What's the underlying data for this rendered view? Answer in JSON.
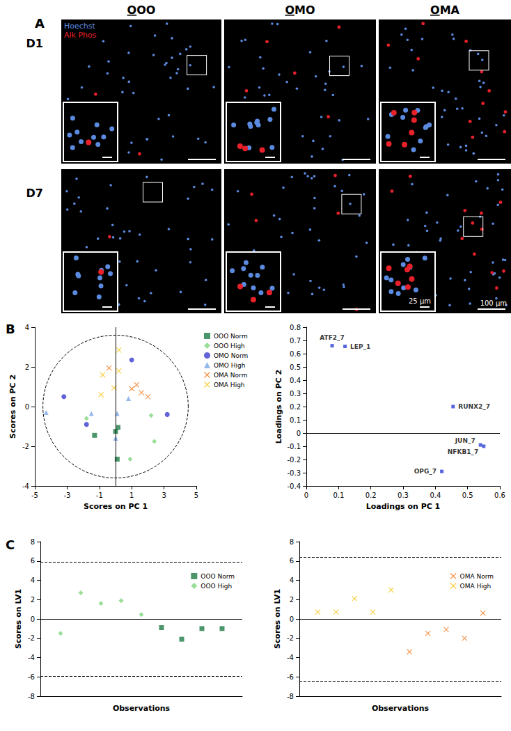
{
  "figure_a": {
    "label": "A",
    "columns": [
      "OOO",
      "OMO",
      "OMA"
    ],
    "rows": [
      "D1",
      "D7"
    ],
    "stains": [
      {
        "name": "Hoechst",
        "color": "#5b8be0"
      },
      {
        "name": "Alk Phos",
        "color": "#e8202a"
      }
    ],
    "scale_bars": {
      "inset": "25 µm",
      "image": "100 µm"
    }
  },
  "panel_labels": [
    "B",
    "C"
  ],
  "chart_data": [
    {
      "type": "scatter",
      "xlabel": "Scores on PC 1",
      "ylabel": "Scores on PC 2",
      "xlim": [
        -5,
        5
      ],
      "xticks": [
        -5,
        -3,
        -1,
        1,
        3,
        5
      ],
      "ylim": [
        -4,
        4
      ],
      "yticks": [
        -4,
        -2,
        0,
        2,
        4
      ],
      "legend": "right",
      "confidence_ellipse": {
        "x_radius": 4.5,
        "y_radius": 3.6
      },
      "reference_lines": {
        "x": 0
      },
      "series": [
        {
          "name": "OOO Norm",
          "color": "#1e7d46",
          "marker": "square",
          "x": [
            -1.3,
            0.0,
            0.15,
            0.1
          ],
          "values": [
            -1.45,
            -1.25,
            -1.05,
            -2.65
          ]
        },
        {
          "name": "OOO High",
          "color": "#7ed67e",
          "marker": "diamond",
          "x": [
            -1.8,
            2.2,
            2.4,
            0.9
          ],
          "values": [
            -0.6,
            -0.45,
            -1.75,
            -2.65
          ]
        },
        {
          "name": "OMO Norm",
          "color": "#3b3bd0",
          "marker": "circle",
          "x": [
            -3.2,
            -1.8,
            1.0,
            3.2
          ],
          "values": [
            0.5,
            -0.9,
            2.35,
            -0.4
          ]
        },
        {
          "name": "OMO High",
          "color": "#7aa6e6",
          "marker": "triangle",
          "x": [
            -4.3,
            -1.5,
            0.1,
            0.0,
            0.8
          ],
          "values": [
            -0.3,
            -0.35,
            -0.35,
            -1.6,
            0.4
          ]
        },
        {
          "name": "OMA Norm",
          "color": "#f07c22",
          "marker": "x",
          "x": [
            -0.4,
            1.0,
            1.3,
            1.6,
            2.0
          ],
          "values": [
            1.95,
            0.9,
            1.1,
            0.7,
            0.5
          ]
        },
        {
          "name": "OMA High",
          "color": "#f5c518",
          "marker": "x",
          "x": [
            0.2,
            0.2,
            -0.8,
            -0.1,
            -0.9
          ],
          "values": [
            2.85,
            1.8,
            1.6,
            0.95,
            0.6
          ]
        }
      ]
    },
    {
      "type": "scatter",
      "xlabel": "Loadings on PC 1",
      "ylabel": "Loadings on PC 2",
      "xlim": [
        0,
        0.6
      ],
      "xticks": [
        0,
        0.1,
        0.2,
        0.3,
        0.4,
        0.5,
        0.6
      ],
      "ylim": [
        -0.4,
        0.8
      ],
      "yticks": [
        -0.4,
        -0.3,
        -0.2,
        -0.1,
        0,
        0.1,
        0.2,
        0.3,
        0.4,
        0.5,
        0.6,
        0.7,
        0.8
      ],
      "reference_lines": {
        "y": 0
      },
      "color": "#2b3fd6",
      "marker": "square",
      "x": [
        0.08,
        0.12,
        0.455,
        0.54,
        0.55,
        0.42
      ],
      "values": [
        0.66,
        0.655,
        0.2,
        -0.09,
        -0.1,
        -0.29
      ],
      "point_labels": [
        "ATF2_7",
        "LEP_1",
        "RUNX2_7",
        "JUN_7",
        "NFKB1_7",
        "OPG_7"
      ]
    },
    {
      "type": "scatter",
      "xlabel": "Observations",
      "ylabel": "Scores on LV1",
      "xlim": [
        0,
        10
      ],
      "ylim": [
        -8,
        8
      ],
      "yticks": [
        -8,
        -6,
        -4,
        -2,
        0,
        2,
        4,
        6,
        8
      ],
      "tick_labels": "y",
      "legend": "upper right",
      "limits": [
        5.9,
        -5.9
      ],
      "reference_lines": {
        "y": 0
      },
      "series": [
        {
          "name": "OOO Norm",
          "color": "#1e7d46",
          "marker": "square",
          "x": [
            6,
            7,
            8,
            9
          ],
          "values": [
            -0.9,
            -2.1,
            -1.0,
            -1.0
          ]
        },
        {
          "name": "OOO High",
          "color": "#7ed67e",
          "marker": "diamond",
          "x": [
            1,
            2,
            3,
            4,
            5
          ],
          "values": [
            -1.5,
            2.7,
            1.6,
            1.9,
            0.45
          ]
        }
      ]
    },
    {
      "type": "scatter",
      "xlabel": "Observations",
      "ylabel": "Scores on LV1",
      "xlim": [
        0,
        11
      ],
      "ylim": [
        -8,
        8
      ],
      "yticks": [
        -8,
        -6,
        -4,
        -2,
        0,
        2,
        4,
        6,
        8
      ],
      "tick_labels": "y",
      "legend": "upper right",
      "limits": [
        6.4,
        -6.4
      ],
      "reference_lines": {
        "y": 0
      },
      "series": [
        {
          "name": "OMA Norm",
          "color": "#f07c22",
          "marker": "x",
          "x": [
            6,
            7,
            8,
            9,
            10
          ],
          "values": [
            -3.4,
            -1.5,
            -1.1,
            -2.0,
            0.6
          ]
        },
        {
          "name": "OMA High",
          "color": "#f5c518",
          "marker": "x",
          "x": [
            1,
            2,
            3,
            4,
            5
          ],
          "values": [
            0.7,
            0.7,
            2.1,
            0.7,
            3.0
          ]
        }
      ]
    }
  ]
}
